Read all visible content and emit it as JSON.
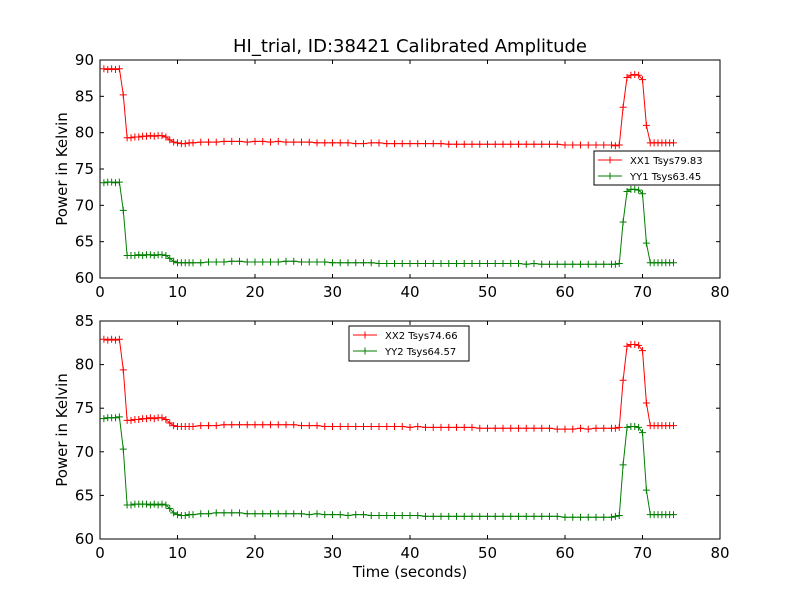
{
  "chart_data": [
    {
      "type": "line",
      "title": "HI_trial, ID:38421 Calibrated Amplitude",
      "xlabel": "",
      "ylabel": "Power in Kelvin",
      "xlim": [
        0,
        80
      ],
      "ylim": [
        60,
        90
      ],
      "xticks": [
        "0",
        "10",
        "20",
        "30",
        "40",
        "50",
        "60",
        "70",
        "80"
      ],
      "yticks": [
        "60",
        "65",
        "70",
        "75",
        "80",
        "85",
        "90"
      ],
      "grid": false,
      "legend_position": "center-right",
      "series": [
        {
          "name": "XX1 Tsys79.83",
          "color": "#ff0000",
          "marker": "plus",
          "x": [
            0.5,
            1.0,
            1.5,
            2.0,
            2.5,
            3.0,
            3.5,
            4.0,
            4.5,
            5.0,
            5.5,
            6.0,
            6.5,
            7.0,
            7.5,
            8.0,
            8.5,
            9.0,
            9.5,
            10.0,
            10.5,
            11.0,
            11.5,
            12.0,
            13.0,
            14.0,
            15.0,
            16.0,
            17.0,
            18.0,
            19.0,
            20.0,
            21.0,
            22.0,
            23.0,
            24.0,
            25.0,
            26.0,
            27.0,
            28.0,
            29.0,
            30.0,
            31.0,
            32.0,
            33.0,
            34.0,
            35.0,
            36.0,
            37.0,
            38.0,
            39.0,
            40.0,
            41.0,
            42.0,
            43.0,
            44.0,
            45.0,
            46.0,
            47.0,
            48.0,
            49.0,
            50.0,
            51.0,
            52.0,
            53.0,
            54.0,
            55.0,
            56.0,
            57.0,
            58.0,
            59.0,
            60.0,
            61.0,
            62.0,
            63.0,
            64.0,
            65.0,
            66.0,
            66.5,
            67.0,
            67.5,
            68.0,
            68.5,
            69.0,
            69.5,
            70.0,
            70.5,
            71.0,
            71.5,
            72.0,
            72.5,
            73.0,
            73.5,
            74.0
          ],
          "y": [
            88.8,
            88.7,
            88.8,
            88.7,
            88.8,
            85.2,
            79.3,
            79.3,
            79.4,
            79.4,
            79.5,
            79.5,
            79.6,
            79.5,
            79.6,
            79.6,
            79.4,
            79.0,
            78.7,
            78.6,
            78.5,
            78.5,
            78.6,
            78.6,
            78.7,
            78.7,
            78.7,
            78.8,
            78.8,
            78.8,
            78.7,
            78.8,
            78.8,
            78.7,
            78.8,
            78.7,
            78.7,
            78.7,
            78.7,
            78.6,
            78.6,
            78.6,
            78.6,
            78.6,
            78.5,
            78.5,
            78.6,
            78.6,
            78.5,
            78.5,
            78.5,
            78.5,
            78.5,
            78.5,
            78.5,
            78.5,
            78.4,
            78.4,
            78.4,
            78.4,
            78.4,
            78.4,
            78.4,
            78.4,
            78.4,
            78.4,
            78.4,
            78.4,
            78.4,
            78.4,
            78.4,
            78.3,
            78.3,
            78.3,
            78.3,
            78.3,
            78.3,
            78.3,
            78.2,
            78.3,
            83.5,
            87.6,
            87.9,
            88.0,
            87.9,
            87.3,
            81.0,
            78.6,
            78.6,
            78.6,
            78.6,
            78.6,
            78.6,
            78.6
          ]
        },
        {
          "name": "YY1 Tsys63.45",
          "color": "#007f00",
          "marker": "plus",
          "x": [
            0.5,
            1.0,
            1.5,
            2.0,
            2.5,
            3.0,
            3.5,
            4.0,
            4.5,
            5.0,
            5.5,
            6.0,
            6.5,
            7.0,
            7.5,
            8.0,
            8.5,
            9.0,
            9.5,
            10.0,
            10.5,
            11.0,
            11.5,
            12.0,
            13.0,
            14.0,
            15.0,
            16.0,
            17.0,
            18.0,
            19.0,
            20.0,
            21.0,
            22.0,
            23.0,
            24.0,
            25.0,
            26.0,
            27.0,
            28.0,
            29.0,
            30.0,
            31.0,
            32.0,
            33.0,
            34.0,
            35.0,
            36.0,
            37.0,
            38.0,
            39.0,
            40.0,
            41.0,
            42.0,
            43.0,
            44.0,
            45.0,
            46.0,
            47.0,
            48.0,
            49.0,
            50.0,
            51.0,
            52.0,
            53.0,
            54.0,
            55.0,
            56.0,
            57.0,
            58.0,
            59.0,
            60.0,
            61.0,
            62.0,
            63.0,
            64.0,
            65.0,
            66.0,
            66.5,
            67.0,
            67.5,
            68.0,
            68.5,
            69.0,
            69.5,
            70.0,
            70.5,
            71.0,
            71.5,
            72.0,
            72.5,
            73.0,
            73.5,
            74.0
          ],
          "y": [
            73.1,
            73.2,
            73.2,
            73.1,
            73.2,
            69.3,
            63.1,
            63.1,
            63.1,
            63.2,
            63.1,
            63.2,
            63.2,
            63.1,
            63.2,
            63.2,
            63.1,
            62.7,
            62.3,
            62.1,
            62.1,
            62.1,
            62.1,
            62.1,
            62.1,
            62.2,
            62.2,
            62.2,
            62.3,
            62.3,
            62.2,
            62.2,
            62.2,
            62.2,
            62.2,
            62.3,
            62.3,
            62.2,
            62.2,
            62.2,
            62.2,
            62.1,
            62.1,
            62.1,
            62.1,
            62.1,
            62.1,
            62.0,
            62.0,
            62.0,
            62.0,
            62.0,
            62.0,
            62.0,
            62.0,
            62.0,
            62.0,
            62.0,
            62.0,
            62.0,
            62.0,
            62.0,
            62.0,
            62.0,
            62.0,
            62.0,
            61.9,
            62.0,
            61.9,
            61.9,
            61.9,
            61.9,
            61.9,
            61.9,
            61.9,
            61.9,
            61.9,
            61.9,
            61.9,
            62.0,
            67.7,
            71.9,
            72.2,
            72.2,
            72.1,
            71.6,
            64.8,
            62.1,
            62.1,
            62.1,
            62.1,
            62.1,
            62.1,
            62.1
          ]
        }
      ]
    },
    {
      "type": "line",
      "title": "",
      "xlabel": "Time (seconds)",
      "ylabel": "Power in Kelvin",
      "xlim": [
        0,
        80
      ],
      "ylim": [
        60,
        85
      ],
      "xticks": [
        "0",
        "10",
        "20",
        "30",
        "40",
        "50",
        "60",
        "70",
        "80"
      ],
      "yticks": [
        "60",
        "65",
        "70",
        "75",
        "80",
        "85"
      ],
      "grid": false,
      "legend_position": "upper-center",
      "series": [
        {
          "name": "XX2 Tsys74.66",
          "color": "#ff0000",
          "marker": "plus",
          "x": [
            0.5,
            1.0,
            1.5,
            2.0,
            2.5,
            3.0,
            3.5,
            4.0,
            4.5,
            5.0,
            5.5,
            6.0,
            6.5,
            7.0,
            7.5,
            8.0,
            8.5,
            9.0,
            9.5,
            10.0,
            10.5,
            11.0,
            11.5,
            12.0,
            13.0,
            14.0,
            15.0,
            16.0,
            17.0,
            18.0,
            19.0,
            20.0,
            21.0,
            22.0,
            23.0,
            24.0,
            25.0,
            26.0,
            27.0,
            28.0,
            29.0,
            30.0,
            31.0,
            32.0,
            33.0,
            34.0,
            35.0,
            36.0,
            37.0,
            38.0,
            39.0,
            40.0,
            41.0,
            42.0,
            43.0,
            44.0,
            45.0,
            46.0,
            47.0,
            48.0,
            49.0,
            50.0,
            51.0,
            52.0,
            53.0,
            54.0,
            55.0,
            56.0,
            57.0,
            58.0,
            59.0,
            60.0,
            61.0,
            62.0,
            63.0,
            64.0,
            65.0,
            66.0,
            66.5,
            67.0,
            67.5,
            68.0,
            68.5,
            69.0,
            69.5,
            70.0,
            70.5,
            71.0,
            71.5,
            72.0,
            72.5,
            73.0,
            73.5,
            74.0
          ],
          "y": [
            82.9,
            82.8,
            82.9,
            82.8,
            82.9,
            79.4,
            73.6,
            73.6,
            73.7,
            73.7,
            73.8,
            73.8,
            73.9,
            73.8,
            73.9,
            73.9,
            73.7,
            73.3,
            73.0,
            72.9,
            72.9,
            72.9,
            72.9,
            72.9,
            73.0,
            73.0,
            73.0,
            73.1,
            73.1,
            73.1,
            73.1,
            73.1,
            73.1,
            73.1,
            73.1,
            73.1,
            73.1,
            73.0,
            73.0,
            73.0,
            72.9,
            72.9,
            72.9,
            72.9,
            72.9,
            72.9,
            72.9,
            72.9,
            72.9,
            72.9,
            72.9,
            72.8,
            72.9,
            72.8,
            72.8,
            72.8,
            72.8,
            72.8,
            72.8,
            72.8,
            72.7,
            72.7,
            72.7,
            72.7,
            72.7,
            72.7,
            72.7,
            72.7,
            72.7,
            72.7,
            72.6,
            72.6,
            72.6,
            72.7,
            72.6,
            72.7,
            72.7,
            72.7,
            72.7,
            72.8,
            78.2,
            82.1,
            82.3,
            82.3,
            82.2,
            81.6,
            75.6,
            73.0,
            73.0,
            73.0,
            73.0,
            73.0,
            73.0,
            73.0
          ]
        },
        {
          "name": "YY2 Tsys64.57",
          "color": "#007f00",
          "marker": "plus",
          "x": [
            0.5,
            1.0,
            1.5,
            2.0,
            2.5,
            3.0,
            3.5,
            4.0,
            4.5,
            5.0,
            5.5,
            6.0,
            6.5,
            7.0,
            7.5,
            8.0,
            8.5,
            9.0,
            9.5,
            10.0,
            10.5,
            11.0,
            11.5,
            12.0,
            13.0,
            14.0,
            15.0,
            16.0,
            17.0,
            18.0,
            19.0,
            20.0,
            21.0,
            22.0,
            23.0,
            24.0,
            25.0,
            26.0,
            27.0,
            28.0,
            29.0,
            30.0,
            31.0,
            32.0,
            33.0,
            34.0,
            35.0,
            36.0,
            37.0,
            38.0,
            39.0,
            40.0,
            41.0,
            42.0,
            43.0,
            44.0,
            45.0,
            46.0,
            47.0,
            48.0,
            49.0,
            50.0,
            51.0,
            52.0,
            53.0,
            54.0,
            55.0,
            56.0,
            57.0,
            58.0,
            59.0,
            60.0,
            61.0,
            62.0,
            63.0,
            64.0,
            65.0,
            66.0,
            66.5,
            67.0,
            67.5,
            68.0,
            68.5,
            69.0,
            69.5,
            70.0,
            70.5,
            71.0,
            71.5,
            72.0,
            72.5,
            73.0,
            73.5,
            74.0
          ],
          "y": [
            73.8,
            73.9,
            73.9,
            73.9,
            74.0,
            70.3,
            63.9,
            63.9,
            64.0,
            64.0,
            64.0,
            64.0,
            63.9,
            64.0,
            63.9,
            64.0,
            63.9,
            63.5,
            63.0,
            62.8,
            62.7,
            62.7,
            62.8,
            62.8,
            62.9,
            62.9,
            63.0,
            63.0,
            63.0,
            63.0,
            62.9,
            62.9,
            62.9,
            62.9,
            62.9,
            62.9,
            62.9,
            62.9,
            62.8,
            62.9,
            62.8,
            62.8,
            62.8,
            62.7,
            62.8,
            62.8,
            62.7,
            62.7,
            62.7,
            62.7,
            62.7,
            62.7,
            62.7,
            62.6,
            62.6,
            62.6,
            62.6,
            62.6,
            62.6,
            62.6,
            62.6,
            62.6,
            62.6,
            62.6,
            62.6,
            62.6,
            62.6,
            62.6,
            62.6,
            62.6,
            62.6,
            62.5,
            62.5,
            62.5,
            62.5,
            62.5,
            62.5,
            62.5,
            62.6,
            62.7,
            68.5,
            72.8,
            72.9,
            72.9,
            72.8,
            72.2,
            65.6,
            62.8,
            62.8,
            62.8,
            62.8,
            62.8,
            62.8,
            62.8
          ]
        }
      ]
    }
  ]
}
